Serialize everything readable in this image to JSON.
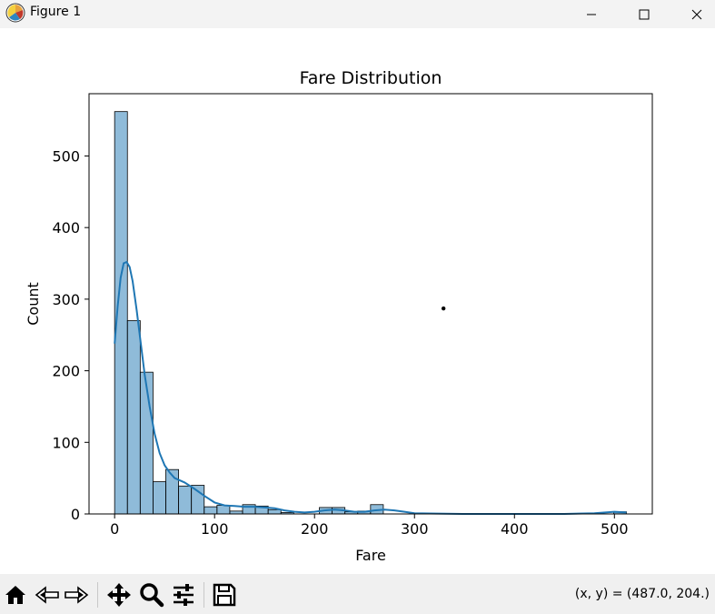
{
  "window": {
    "title": "Figure 1"
  },
  "chart_data": {
    "type": "bar",
    "title": "Fare Distribution",
    "xlabel": "Fare",
    "ylabel": "Count",
    "xlim": [
      -25.6,
      537.9
    ],
    "ylim": [
      0,
      587
    ],
    "xticks": [
      0,
      100,
      200,
      300,
      400,
      500
    ],
    "yticks": [
      0,
      100,
      200,
      300,
      400,
      500
    ],
    "bin_width": 12.8,
    "bin_start": 0,
    "counts": [
      562,
      270,
      198,
      45,
      62,
      39,
      40,
      10,
      12,
      4,
      13,
      11,
      6,
      2,
      0,
      0,
      9,
      9,
      3,
      4,
      13,
      0,
      0,
      0,
      0,
      0,
      0,
      0,
      0,
      0,
      0,
      0,
      0,
      0,
      0,
      0,
      0,
      0,
      0,
      3
    ],
    "kde": {
      "x": [
        0,
        3,
        6,
        9,
        12,
        15,
        18,
        22,
        26,
        30,
        35,
        40,
        45,
        50,
        55,
        60,
        70,
        80,
        90,
        100,
        110,
        120,
        130,
        140,
        150,
        160,
        170,
        180,
        190,
        200,
        210,
        220,
        230,
        240,
        250,
        260,
        270,
        280,
        290,
        300,
        350,
        400,
        450,
        480,
        500,
        512
      ],
      "y": [
        238,
        290,
        330,
        350,
        352,
        345,
        325,
        285,
        240,
        195,
        150,
        112,
        85,
        68,
        58,
        50,
        44,
        35,
        25,
        16,
        12,
        11,
        10,
        10,
        9,
        8,
        5,
        3,
        2,
        3,
        5,
        6,
        5,
        3,
        3,
        5,
        6,
        5,
        3,
        1,
        0,
        0,
        0,
        1,
        3,
        2
      ]
    },
    "bar_color": "#1f77b4",
    "line_color": "#1f77b4",
    "grid": false,
    "marker": {
      "x": 329,
      "y": 287
    }
  },
  "toolbar": {
    "buttons": [
      "home-icon",
      "back-icon",
      "forward-icon",
      "pan-icon",
      "zoom-icon",
      "configure-icon",
      "save-icon"
    ],
    "coords": "(x, y) = (487.0, 204.)"
  }
}
